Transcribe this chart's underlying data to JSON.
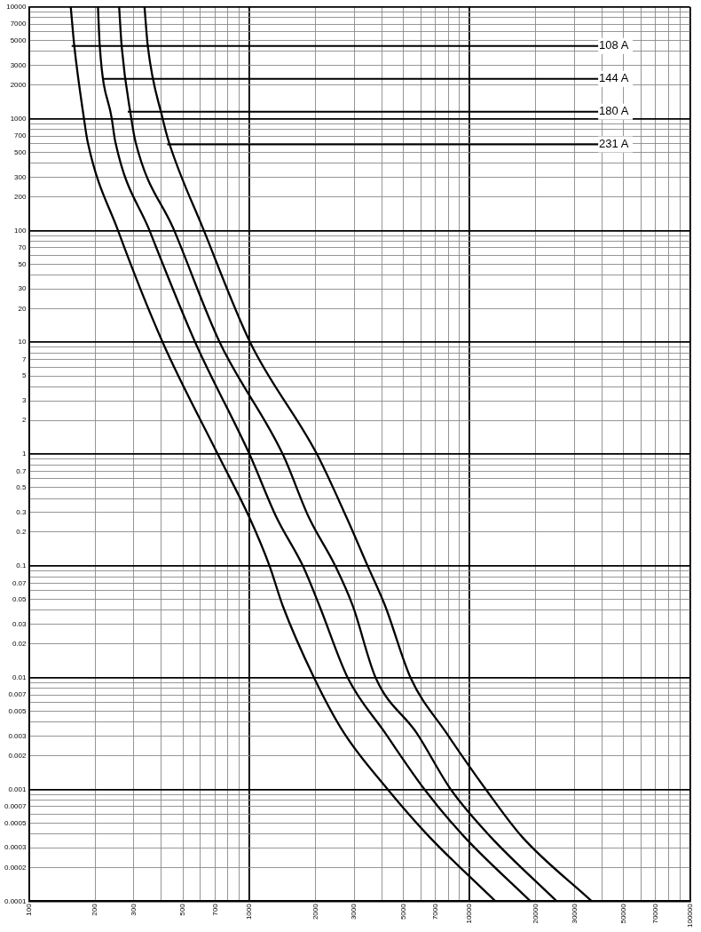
{
  "chart_data": {
    "type": "line",
    "log": "xy",
    "grid": true,
    "xlim": [
      100,
      100000
    ],
    "ylim": [
      0.0001,
      10000
    ],
    "xticks": [
      100,
      200,
      300,
      {
        "value": 400,
        "label": null
      },
      500,
      {
        "value": 600,
        "label": null
      },
      700,
      {
        "value": 800,
        "label": null
      },
      {
        "value": 900,
        "label": null
      },
      1000,
      2000,
      3000,
      {
        "value": 4000,
        "label": null
      },
      5000,
      {
        "value": 6000,
        "label": null
      },
      7000,
      {
        "value": 8000,
        "label": null
      },
      {
        "value": 9000,
        "label": null
      },
      10000,
      20000,
      30000,
      {
        "value": 40000,
        "label": null
      },
      50000,
      {
        "value": 60000,
        "label": null
      },
      70000,
      {
        "value": 80000,
        "label": null
      },
      {
        "value": 90000,
        "label": null
      },
      100000
    ],
    "yticks": [
      0.0001,
      0.0002,
      0.0003,
      {
        "value": 0.0004,
        "label": null
      },
      0.0005,
      {
        "value": 0.0006,
        "label": null
      },
      0.0007,
      {
        "value": 0.0008,
        "label": null
      },
      {
        "value": 0.0009,
        "label": null
      },
      0.001,
      0.002,
      0.003,
      {
        "value": 0.004,
        "label": null
      },
      0.005,
      {
        "value": 0.006,
        "label": null
      },
      0.007,
      {
        "value": 0.008,
        "label": null
      },
      {
        "value": 0.009,
        "label": null
      },
      0.01,
      0.02,
      0.03,
      {
        "value": 0.04,
        "label": null
      },
      0.05,
      {
        "value": 0.06,
        "label": null
      },
      0.07,
      {
        "value": 0.08,
        "label": null
      },
      {
        "value": 0.09,
        "label": null
      },
      0.1,
      0.2,
      0.3,
      {
        "value": 0.4,
        "label": null
      },
      0.5,
      {
        "value": 0.6,
        "label": null
      },
      0.7,
      {
        "value": 0.8,
        "label": null
      },
      {
        "value": 0.9,
        "label": null
      },
      1,
      2,
      3,
      {
        "value": 4,
        "label": null
      },
      5,
      {
        "value": 6,
        "label": null
      },
      7,
      {
        "value": 8,
        "label": null
      },
      {
        "value": 9,
        "label": null
      },
      10,
      20,
      30,
      {
        "value": 40,
        "label": null
      },
      50,
      {
        "value": 60,
        "label": null
      },
      70,
      {
        "value": 80,
        "label": null
      },
      {
        "value": 90,
        "label": null
      },
      100,
      200,
      300,
      {
        "value": 400,
        "label": null
      },
      500,
      {
        "value": 600,
        "label": null
      },
      700,
      {
        "value": 800,
        "label": null
      },
      {
        "value": 900,
        "label": null
      },
      1000,
      2000,
      3000,
      {
        "value": 4000,
        "label": null
      },
      5000,
      {
        "value": 6000,
        "label": null
      },
      7000,
      {
        "value": 8000,
        "label": null
      },
      {
        "value": 9000,
        "label": null
      },
      10000
    ],
    "series": [
      {
        "name": "108 A",
        "color": "#000000",
        "x": [
          155,
          161,
          178,
          185,
          254,
          405,
          720,
          1003,
          1237,
          1420,
          1970,
          2694,
          4256,
          6543,
          13100
        ],
        "values": [
          10000,
          4400,
          1000,
          620,
          100,
          10,
          1,
          0.27,
          0.1,
          0.044,
          0.01,
          0.0032,
          0.001,
          0.00038,
          0.0001
        ]
      },
      {
        "name": "144 A",
        "color": "#000000",
        "x": [
          206,
          210,
          238,
          247,
          353,
          569,
          1003,
          1332,
          1752,
          2084,
          2800,
          4140,
          6250,
          9432,
          18900
        ],
        "values": [
          10000,
          4400,
          1000,
          620,
          100,
          10,
          1,
          0.27,
          0.1,
          0.044,
          0.01,
          0.0032,
          0.001,
          0.00038,
          0.0001
        ]
      },
      {
        "name": "180 A",
        "color": "#000000",
        "x": [
          257,
          264,
          292,
          305,
          457,
          735,
          1420,
          1868,
          2458,
          2951,
          3750,
          5754,
          8222,
          12410,
          24870
        ],
        "values": [
          10000,
          4400,
          1000,
          620,
          100,
          10,
          1,
          0.27,
          0.1,
          0.044,
          0.01,
          0.0032,
          0.001,
          0.00038,
          0.0001
        ]
      },
      {
        "name": "231 A",
        "color": "#000000",
        "x": [
          335,
          347,
          405,
          432,
          623,
          1010,
          2030,
          2769,
          3448,
          4140,
          5400,
          7855,
          11860,
          17250,
          35860
        ],
        "values": [
          10000,
          4400,
          1000,
          620,
          100,
          10,
          1,
          0.27,
          0.1,
          0.044,
          0.01,
          0.0032,
          0.001,
          0.00038,
          0.0001
        ]
      }
    ]
  }
}
